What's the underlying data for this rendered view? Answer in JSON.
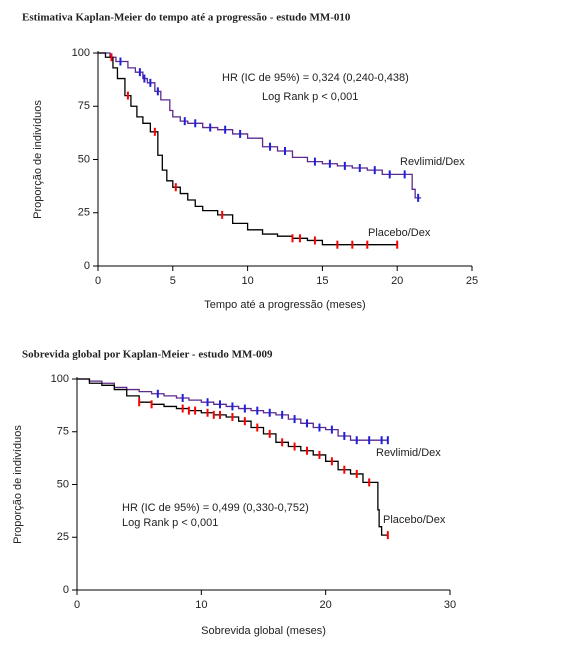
{
  "chart_data": [
    {
      "type": "line",
      "step": true,
      "title": "Estimativa Kaplan-Meier do tempo até a progressão - estudo MM-010",
      "annotations": [
        "HR (IC de 95%) = 0,324 (0,240-0,438)",
        "Log Rank p < 0,001"
      ],
      "xlabel": "Tempo até a progressão (meses)",
      "ylabel": "Proporção de indivíduos",
      "xlim": [
        0,
        25
      ],
      "ylim": [
        0,
        100
      ],
      "xticks": [
        0,
        5,
        10,
        15,
        20,
        25
      ],
      "yticks": [
        0,
        25,
        50,
        75,
        100
      ],
      "series": [
        {
          "name": "Revlimid/Dex",
          "color": "#5b2a8c",
          "censor_color": "#1f1fe0",
          "x": [
            0,
            0.8,
            1.2,
            2,
            2.5,
            3,
            3.3,
            3.8,
            4.2,
            4.8,
            5,
            5.5,
            6,
            7,
            8,
            9,
            10,
            11,
            12,
            13,
            14,
            15,
            16,
            17,
            18,
            19,
            20,
            21,
            21.2,
            21.6
          ],
          "values": [
            100,
            98,
            96,
            93,
            91,
            88,
            86,
            82,
            78,
            73,
            70,
            68,
            67,
            65,
            64,
            62,
            60,
            56,
            54,
            51,
            49,
            48,
            47,
            46,
            45,
            43,
            43,
            36,
            32,
            32
          ],
          "censored": [
            1.5,
            2.8,
            3.1,
            3.5,
            4,
            5.8,
            6.5,
            7.5,
            8.5,
            9.5,
            11.5,
            12.5,
            14.5,
            15.5,
            16.5,
            17.5,
            18.5,
            19.5,
            20.5,
            21.4
          ]
        },
        {
          "name": "Placebo/Dex",
          "color": "#000000",
          "censor_color": "#ff0000",
          "x": [
            0,
            0.5,
            1,
            1.3,
            1.8,
            2.2,
            2.6,
            3,
            3.5,
            4,
            4.3,
            4.6,
            5,
            5.5,
            6,
            6.5,
            7,
            8,
            9,
            10,
            11,
            12,
            13,
            14,
            15,
            20
          ],
          "values": [
            100,
            98,
            93,
            88,
            80,
            75,
            70,
            67,
            63,
            52,
            45,
            40,
            37,
            34,
            31,
            28,
            26,
            24,
            20,
            17,
            15,
            14,
            13,
            12,
            10,
            10
          ],
          "censored": [
            0.9,
            2,
            3.8,
            5.2,
            8.3,
            13,
            13.5,
            14.5,
            16,
            17,
            18,
            20
          ]
        }
      ]
    },
    {
      "type": "line",
      "step": true,
      "title": "Sobrevida global por Kaplan-Meier - estudo MM-009",
      "annotations": [
        "HR (IC de 95%) = 0,499 (0,330-0,752)",
        "Log Rank p < 0,001"
      ],
      "xlabel": "Sobrevida global (meses)",
      "ylabel": "Proporção de indivíduos",
      "xlim": [
        0,
        30
      ],
      "ylim": [
        0,
        100
      ],
      "xticks": [
        0,
        10,
        20,
        30
      ],
      "yticks": [
        0,
        25,
        50,
        75,
        100
      ],
      "series": [
        {
          "name": "Revlimid/Dex",
          "color": "#5b2a8c",
          "censor_color": "#1f1fe0",
          "x": [
            0,
            1,
            2,
            3,
            4,
            5,
            6,
            7,
            8,
            9,
            10,
            11,
            12,
            13,
            14,
            15,
            16,
            17,
            18,
            19,
            20,
            21,
            22,
            23,
            25
          ],
          "values": [
            100,
            99,
            98,
            96,
            95,
            94,
            93,
            92,
            91,
            90,
            89,
            88,
            87,
            86,
            85,
            84,
            83,
            81,
            79,
            77,
            76,
            73,
            71,
            71,
            71
          ],
          "censored": [
            6.5,
            8.5,
            10.5,
            11.5,
            12.5,
            13.5,
            14.5,
            15.5,
            16.5,
            17.5,
            18.5,
            19.5,
            20.5,
            21.5,
            22.5,
            23.5,
            24.5,
            25
          ]
        },
        {
          "name": "Placebo/Dex",
          "color": "#000000",
          "censor_color": "#ff0000",
          "x": [
            0,
            1,
            2,
            3,
            4,
            5,
            6,
            7,
            8,
            9,
            10,
            11,
            12,
            13,
            14,
            15,
            16,
            17,
            18,
            19,
            20,
            21,
            22,
            23,
            24,
            24.2,
            24.3,
            24.5,
            25
          ],
          "values": [
            100,
            98,
            97,
            95,
            92,
            89,
            88,
            87,
            86,
            85,
            84,
            83,
            82,
            80,
            77,
            74,
            70,
            68,
            66,
            64,
            61,
            57,
            55,
            51,
            51,
            38,
            30,
            26,
            26
          ],
          "censored": [
            5,
            6,
            8.5,
            9,
            9.5,
            10.5,
            11,
            11.5,
            12.5,
            13.5,
            14.5,
            15.5,
            16.5,
            17.5,
            18.5,
            19.5,
            20.5,
            21.5,
            22.5,
            23.5,
            25
          ]
        }
      ]
    }
  ]
}
